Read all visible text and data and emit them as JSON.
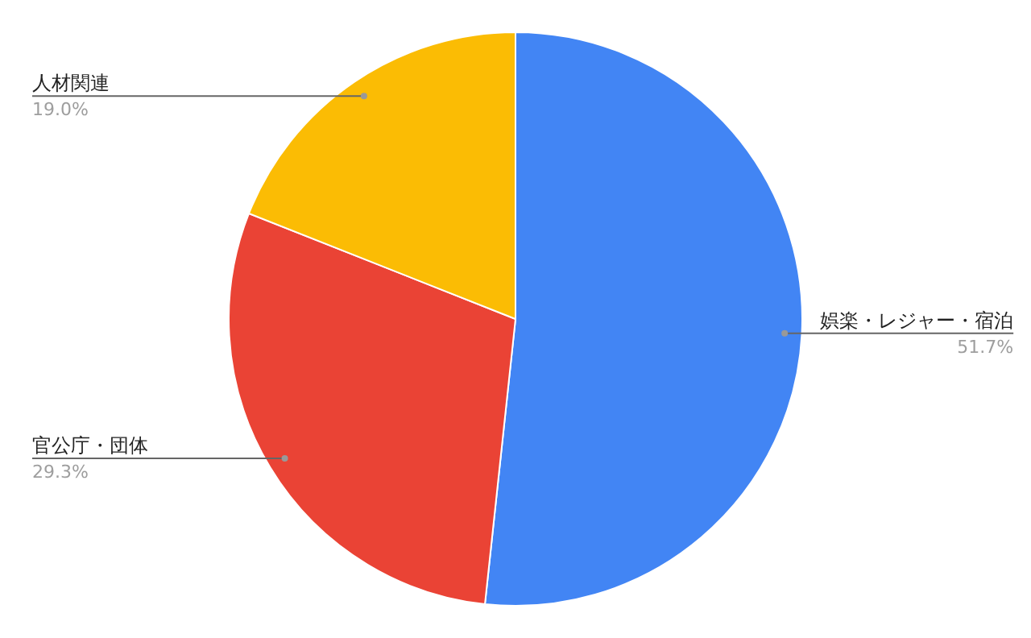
{
  "chart_data": {
    "type": "pie",
    "categories": [
      "娯楽・レジャー・宿泊",
      "官公庁・団体",
      "人材関連"
    ],
    "values": [
      51.7,
      29.3,
      19.0
    ],
    "value_labels": [
      "51.7%",
      "29.3%",
      "19.0%"
    ],
    "colors": [
      "#4285f4",
      "#ea4335",
      "#fbbc04"
    ]
  }
}
